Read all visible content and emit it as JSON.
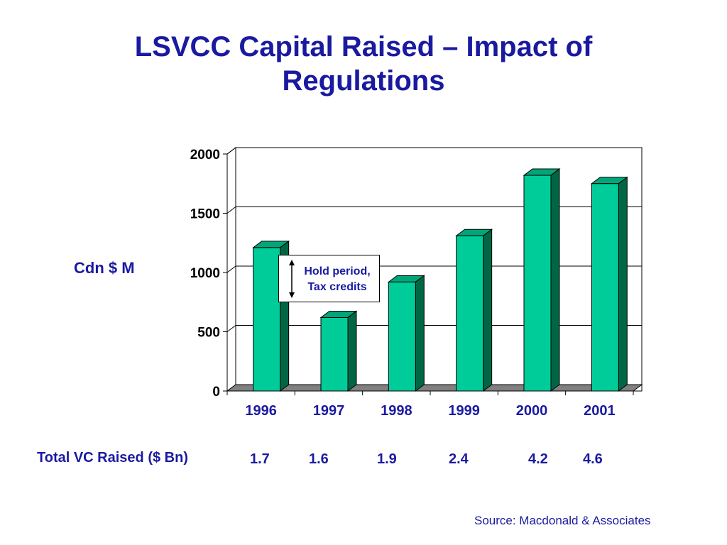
{
  "title_line1": "LSVCC Capital Raised – Impact of",
  "title_line2": "Regulations",
  "y_axis_label": "Cdn $ M",
  "callout": {
    "line1": "Hold period,",
    "line2": "Tax credits"
  },
  "totals_label": "Total VC Raised ($ Bn)",
  "totals": [
    "1.7",
    "1.6",
    "1.9",
    "2.4",
    "4.2",
    "4.6"
  ],
  "source": "Source: Macdonald & Associates",
  "colors": {
    "bar_front": "#00CC99",
    "bar_top": "#00A679",
    "bar_side": "#006644",
    "floor": "#808080",
    "text": "#1a1aa0"
  },
  "chart_data": {
    "type": "bar",
    "categories": [
      "1996",
      "1997",
      "1998",
      "1999",
      "2000",
      "2001"
    ],
    "values": [
      1210,
      620,
      920,
      1310,
      1820,
      1750
    ],
    "ylim": [
      0,
      2000
    ],
    "yticks": [
      0,
      500,
      1000,
      1500,
      2000
    ],
    "grid": true,
    "ylabel": "Cdn $ M",
    "xlabel": "",
    "title": "LSVCC Capital Raised – Impact of Regulations"
  }
}
